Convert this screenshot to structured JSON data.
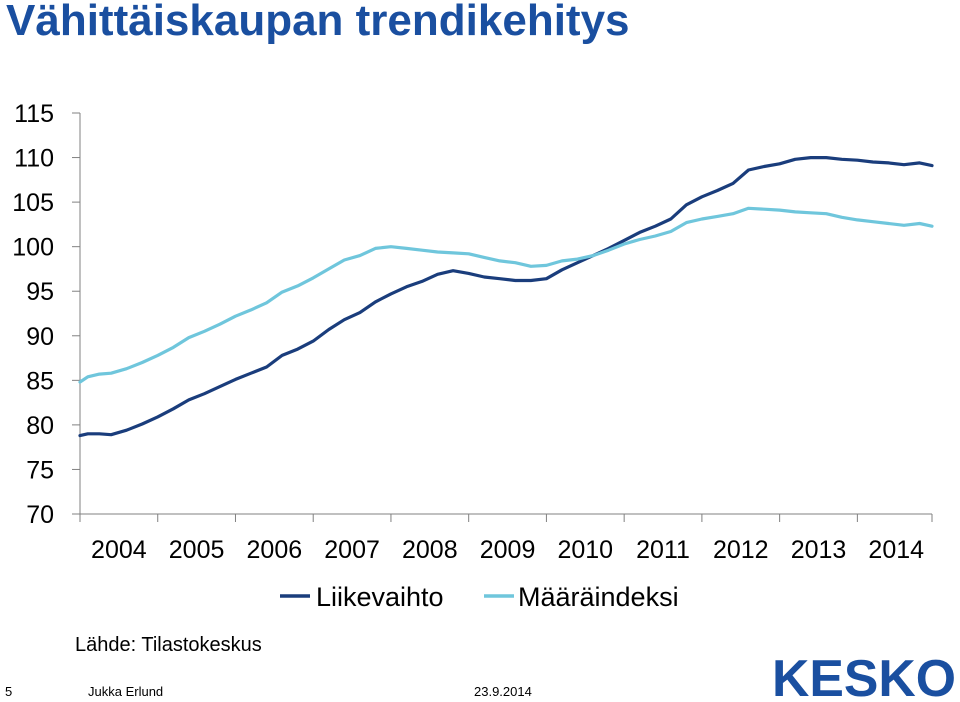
{
  "title": "Vähittäiskaupan trendikehitys",
  "source": "Lähde: Tilastokeskus",
  "footer": {
    "page": "5",
    "author": "Jukka Erlund",
    "date": "23.9.2014"
  },
  "logo": {
    "text": "KESKO",
    "color": "#1a4fa0"
  },
  "chart_data": {
    "type": "line",
    "title": "Vähittäiskaupan trendikehitys",
    "xlabel": "",
    "ylabel": "",
    "ylim": [
      70,
      115
    ],
    "yticks": [
      70,
      75,
      80,
      85,
      90,
      95,
      100,
      105,
      110,
      115
    ],
    "xlim": [
      2004,
      2014.96
    ],
    "xticks": [
      2004,
      2005,
      2006,
      2007,
      2008,
      2009,
      2010,
      2011,
      2012,
      2013,
      2014
    ],
    "legend_position": "bottom",
    "grid": false,
    "series": [
      {
        "name": "Liikevaihto",
        "color": "#1a3d7c",
        "x": [
          2004.0,
          2004.1,
          2004.25,
          2004.4,
          2004.6,
          2004.8,
          2005.0,
          2005.2,
          2005.4,
          2005.6,
          2005.8,
          2006.0,
          2006.2,
          2006.4,
          2006.6,
          2006.8,
          2007.0,
          2007.2,
          2007.4,
          2007.6,
          2007.8,
          2008.0,
          2008.2,
          2008.4,
          2008.6,
          2008.8,
          2009.0,
          2009.2,
          2009.4,
          2009.6,
          2009.8,
          2010.0,
          2010.2,
          2010.4,
          2010.6,
          2010.8,
          2011.0,
          2011.2,
          2011.4,
          2011.6,
          2011.8,
          2012.0,
          2012.2,
          2012.4,
          2012.6,
          2012.8,
          2013.0,
          2013.2,
          2013.4,
          2013.6,
          2013.8,
          2014.0,
          2014.2,
          2014.4,
          2014.6,
          2014.8,
          2014.96
        ],
        "values": [
          78.8,
          79.0,
          79.0,
          78.9,
          79.4,
          80.1,
          80.9,
          81.8,
          82.8,
          83.5,
          84.3,
          85.1,
          85.8,
          86.5,
          87.8,
          88.5,
          89.4,
          90.7,
          91.8,
          92.6,
          93.8,
          94.7,
          95.5,
          96.1,
          96.9,
          97.3,
          97.0,
          96.6,
          96.4,
          96.2,
          96.2,
          96.4,
          97.4,
          98.2,
          99.0,
          99.8,
          100.7,
          101.6,
          102.3,
          103.1,
          104.7,
          105.6,
          106.3,
          107.1,
          108.6,
          109.0,
          109.3,
          109.8,
          110.0,
          110.0,
          109.8,
          109.7,
          109.5,
          109.4,
          109.2,
          109.4,
          109.1
        ]
      },
      {
        "name": "Määräindeksi",
        "color": "#6fc6dc",
        "x": [
          2004.0,
          2004.1,
          2004.25,
          2004.4,
          2004.6,
          2004.8,
          2005.0,
          2005.2,
          2005.4,
          2005.6,
          2005.8,
          2006.0,
          2006.2,
          2006.4,
          2006.6,
          2006.8,
          2007.0,
          2007.2,
          2007.4,
          2007.6,
          2007.8,
          2008.0,
          2008.2,
          2008.4,
          2008.6,
          2008.8,
          2009.0,
          2009.2,
          2009.4,
          2009.6,
          2009.8,
          2010.0,
          2010.2,
          2010.4,
          2010.6,
          2010.8,
          2011.0,
          2011.2,
          2011.4,
          2011.6,
          2011.8,
          2012.0,
          2012.2,
          2012.4,
          2012.6,
          2012.8,
          2013.0,
          2013.2,
          2013.4,
          2013.6,
          2013.8,
          2014.0,
          2014.2,
          2014.4,
          2014.6,
          2014.8,
          2014.96
        ],
        "values": [
          84.8,
          85.4,
          85.7,
          85.8,
          86.3,
          87.0,
          87.8,
          88.7,
          89.8,
          90.5,
          91.3,
          92.2,
          92.9,
          93.7,
          94.9,
          95.6,
          96.5,
          97.5,
          98.5,
          99.0,
          99.8,
          100.0,
          99.8,
          99.6,
          99.4,
          99.3,
          99.2,
          98.8,
          98.4,
          98.2,
          97.8,
          97.9,
          98.4,
          98.6,
          99.0,
          99.6,
          100.3,
          100.8,
          101.2,
          101.7,
          102.7,
          103.1,
          103.4,
          103.7,
          104.3,
          104.2,
          104.1,
          103.9,
          103.8,
          103.7,
          103.3,
          103.0,
          102.8,
          102.6,
          102.4,
          102.6,
          102.3
        ]
      }
    ]
  }
}
